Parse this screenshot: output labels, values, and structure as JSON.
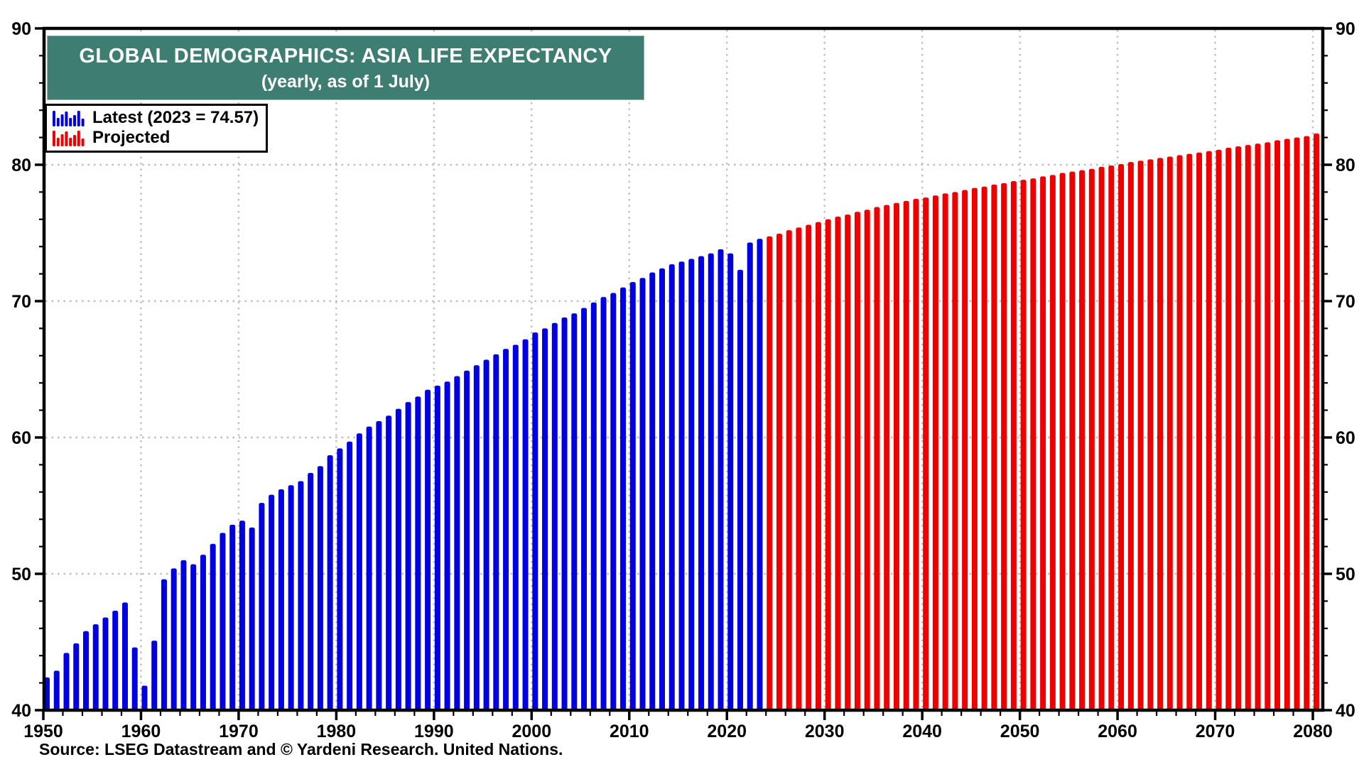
{
  "title": {
    "text": "GLOBAL DEMOGRAPHICS: ASIA LIFE EXPECTANCY",
    "subtitle": "(yearly, as of 1 July)",
    "bg_color": "#3E7D71",
    "text_color": "#FFFFFF"
  },
  "legend": {
    "items": [
      {
        "label": "Latest (2023 = 74.57)",
        "color": "#0000E0",
        "icon": "mini-bar-chart-blue-icon"
      },
      {
        "label": "Projected",
        "color": "#EE0000",
        "icon": "mini-bar-chart-red-icon"
      }
    ]
  },
  "source_line": "Source: LSEG Datastream and © Yardeni Research. United Nations.",
  "chart_data": {
    "type": "bar",
    "title": "GLOBAL DEMOGRAPHICS: ASIA LIFE EXPECTANCY",
    "subtitle": "(yearly, as of 1 July)",
    "xlabel": "",
    "ylabel": "",
    "ylim": [
      40,
      90
    ],
    "y_ticks": [
      40,
      50,
      60,
      70,
      80,
      90
    ],
    "y_minor_step": 2,
    "x_ticks": [
      1950,
      1960,
      1970,
      1980,
      1990,
      2000,
      2010,
      2020,
      2030,
      2040,
      2050,
      2060,
      2070,
      2080
    ],
    "x_minor_step": 2,
    "grid": "dotted",
    "legend_position": "top-left",
    "axis_labels_both_sides": true,
    "start_year": 1950,
    "end_year": 2080,
    "annotation": "Latest (2023 = 74.57)",
    "series": [
      {
        "name": "Latest (2023 = 74.57)",
        "color": "#0000E0",
        "start_year": 1950,
        "end_year": 2023,
        "values": [
          42.4,
          42.9,
          44.2,
          44.9,
          45.8,
          46.3,
          46.8,
          47.3,
          47.9,
          44.6,
          41.8,
          45.1,
          49.6,
          50.4,
          51.0,
          50.7,
          51.4,
          52.2,
          53.0,
          53.6,
          53.9,
          53.4,
          55.2,
          55.8,
          56.2,
          56.5,
          56.8,
          57.4,
          57.9,
          58.7,
          59.2,
          59.7,
          60.3,
          60.8,
          61.2,
          61.6,
          62.1,
          62.6,
          63.0,
          63.5,
          63.8,
          64.1,
          64.5,
          64.9,
          65.3,
          65.7,
          66.1,
          66.5,
          66.8,
          67.2,
          67.7,
          68.0,
          68.4,
          68.8,
          69.1,
          69.5,
          69.9,
          70.3,
          70.6,
          71.0,
          71.4,
          71.7,
          72.1,
          72.4,
          72.7,
          72.9,
          73.1,
          73.3,
          73.5,
          73.8,
          73.5,
          72.3,
          74.3,
          74.57
        ]
      },
      {
        "name": "Projected",
        "color": "#EE0000",
        "start_year": 2024,
        "end_year": 2080,
        "values": [
          74.75,
          74.95,
          75.2,
          75.4,
          75.6,
          75.8,
          76.0,
          76.2,
          76.35,
          76.55,
          76.7,
          76.9,
          77.05,
          77.2,
          77.35,
          77.5,
          77.6,
          77.75,
          77.9,
          78.0,
          78.15,
          78.3,
          78.4,
          78.55,
          78.65,
          78.8,
          78.9,
          79.0,
          79.15,
          79.25,
          79.4,
          79.5,
          79.6,
          79.7,
          79.85,
          79.95,
          80.05,
          80.2,
          80.3,
          80.4,
          80.5,
          80.6,
          80.7,
          80.8,
          80.9,
          81.0,
          81.1,
          81.25,
          81.35,
          81.45,
          81.55,
          81.65,
          81.8,
          81.9,
          82.0,
          82.1,
          82.3
        ]
      }
    ]
  },
  "colors": {
    "grid": "#BEBEBE",
    "axis": "#000000",
    "background": "#FFFFFF"
  }
}
